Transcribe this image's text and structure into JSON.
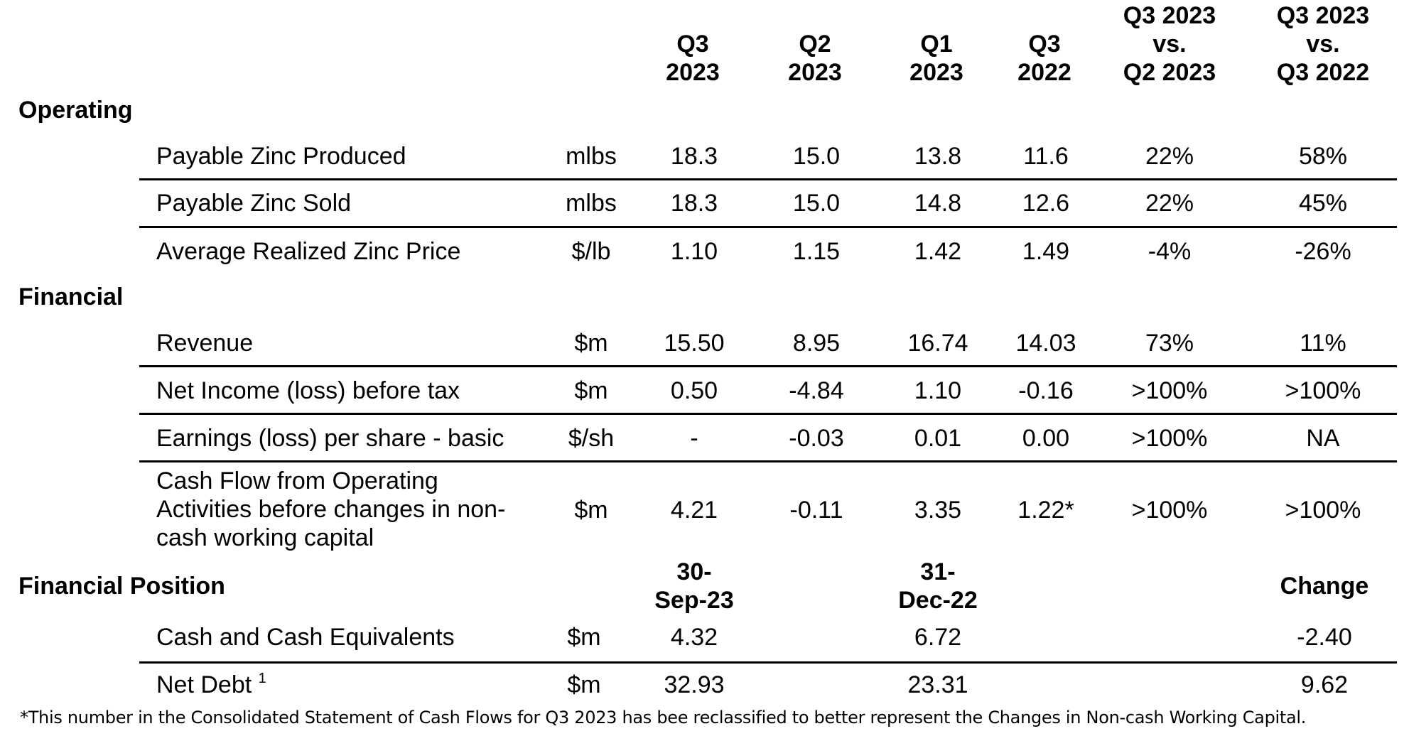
{
  "columns": {
    "q3_2023": [
      "Q3",
      "2023"
    ],
    "q2_2023": [
      "Q2",
      "2023"
    ],
    "q1_2023": [
      "Q1",
      "2023"
    ],
    "q3_2022": [
      "Q3",
      "2022"
    ],
    "vs_q2": [
      "Q3 2023",
      "vs.",
      "Q2 2023"
    ],
    "vs_q3": [
      "Q3 2023",
      "vs.",
      "Q3 2022"
    ]
  },
  "sections": {
    "operating": "Operating",
    "financial": "Financial",
    "financial_position": "Financial Position"
  },
  "operating_rows": [
    {
      "label": "Payable Zinc Produced",
      "unit": "mlbs",
      "q3_2023": "18.3",
      "q2_2023": "15.0",
      "q1_2023": "13.8",
      "q3_2022": "11.6",
      "vs_q2": "22%",
      "vs_q3": "58%"
    },
    {
      "label": "Payable Zinc Sold",
      "unit": "mlbs",
      "q3_2023": "18.3",
      "q2_2023": "15.0",
      "q1_2023": "14.8",
      "q3_2022": "12.6",
      "vs_q2": "22%",
      "vs_q3": "45%"
    },
    {
      "label": "Average Realized Zinc Price",
      "unit": "$/lb",
      "q3_2023": "1.10",
      "q2_2023": "1.15",
      "q1_2023": "1.42",
      "q3_2022": "1.49",
      "vs_q2": "-4%",
      "vs_q3": "-26%"
    }
  ],
  "financial_rows": [
    {
      "label": "Revenue",
      "unit": "$m",
      "q3_2023": "15.50",
      "q2_2023": "8.95",
      "q1_2023": "16.74",
      "q3_2022": "14.03",
      "vs_q2": "73%",
      "vs_q3": "11%"
    },
    {
      "label": "Net Income (loss) before tax",
      "unit": "$m",
      "q3_2023": "0.50",
      "q2_2023": "-4.84",
      "q1_2023": "1.10",
      "q3_2022": "-0.16",
      "vs_q2": ">100%",
      "vs_q3": ">100%"
    },
    {
      "label": "Earnings (loss) per share - basic",
      "unit": "$/sh",
      "q3_2023": "-",
      "q2_2023": "-0.03",
      "q1_2023": "0.01",
      "q3_2022": "0.00",
      "vs_q2": ">100%",
      "vs_q3": "NA"
    },
    {
      "label_lines": [
        "Cash Flow from Operating",
        "Activities before changes in non-",
        "cash working capital"
      ],
      "unit": "$m",
      "q3_2023": "4.21",
      "q2_2023": "-0.11",
      "q1_2023": "3.35",
      "q3_2022": "1.22*",
      "vs_q2": ">100%",
      "vs_q3": ">100%"
    }
  ],
  "position_columns": {
    "sep": [
      "30-",
      "Sep-23"
    ],
    "dec": [
      "31-",
      "Dec-22"
    ],
    "change": "Change"
  },
  "position_rows": [
    {
      "label": "Cash and Cash Equivalents",
      "unit": "$m",
      "sep": "4.32",
      "dec": "6.72",
      "change": "-2.40"
    },
    {
      "label": "Net Debt",
      "footnote_mark": "1",
      "unit": "$m",
      "sep": "32.93",
      "dec": "23.31",
      "change": "9.62"
    }
  ],
  "footnote": "*This number in the Consolidated Statement of Cash Flows for Q3 2023  has bee reclassified to better represent the Changes in  Non-cash Working Capital."
}
